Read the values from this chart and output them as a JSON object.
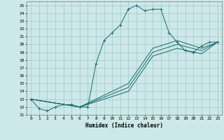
{
  "title": "",
  "xlabel": "Humidex (Indice chaleur)",
  "bg_color": "#cce8e8",
  "grid_color": "#aacccc",
  "line_color": "#1a6b6b",
  "xlim": [
    -0.5,
    23.5
  ],
  "ylim": [
    11,
    25.5
  ],
  "xticks": [
    0,
    1,
    2,
    3,
    4,
    5,
    6,
    7,
    8,
    9,
    10,
    11,
    12,
    13,
    14,
    15,
    16,
    17,
    18,
    19,
    20,
    21,
    22,
    23
  ],
  "yticks": [
    11,
    12,
    13,
    14,
    15,
    16,
    17,
    18,
    19,
    20,
    21,
    22,
    23,
    24,
    25
  ],
  "lines": [
    {
      "x": [
        0,
        1,
        2,
        3,
        4,
        5,
        6,
        7,
        8,
        9,
        10,
        11,
        12,
        13,
        14,
        15,
        16,
        17,
        18,
        19,
        20,
        21,
        22,
        23
      ],
      "y": [
        13,
        11.8,
        11.5,
        12,
        12.3,
        12.3,
        12,
        12,
        17.5,
        20.5,
        21.5,
        22.5,
        24.5,
        25,
        24.3,
        24.5,
        24.5,
        21.5,
        20.3,
        19.2,
        19,
        19.8,
        20.3,
        20.3
      ],
      "marker": true
    },
    {
      "x": [
        0,
        6,
        12,
        15,
        18,
        21,
        23
      ],
      "y": [
        13,
        12,
        15,
        19.5,
        20.5,
        19.5,
        20.3
      ],
      "marker": false
    },
    {
      "x": [
        0,
        6,
        12,
        15,
        18,
        21,
        23
      ],
      "y": [
        13,
        12,
        14.5,
        19.0,
        20.0,
        19.2,
        20.3
      ],
      "marker": false
    },
    {
      "x": [
        0,
        6,
        12,
        15,
        18,
        21,
        23
      ],
      "y": [
        13,
        12,
        14.0,
        18.5,
        19.5,
        18.8,
        20.3
      ],
      "marker": false
    }
  ]
}
